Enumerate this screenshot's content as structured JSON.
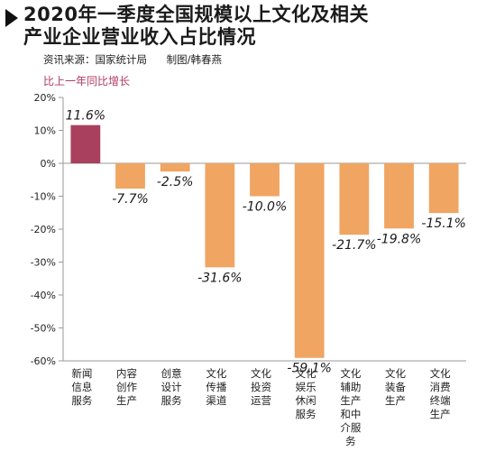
{
  "header": {
    "title_line1": "2020年一季度全国规模以上文化及相关",
    "title_line2": "产业企业营业收入占比情况",
    "source": "资讯来源：国家统计局",
    "credit": "制图/韩春燕"
  },
  "chart_data": {
    "type": "bar",
    "title": "2020年一季度全国规模以上文化及相关产业企业营业收入占比情况",
    "subtitle": "比上一年同比增长",
    "ylabel": "比上一年同比增长",
    "ylim": [
      -60,
      20
    ],
    "yticks": [
      "20%",
      "10%",
      "0%",
      "-10%",
      "-20%",
      "-30%",
      "-40%",
      "-50%",
      "-60%"
    ],
    "ytick_values": [
      20,
      10,
      0,
      -10,
      -20,
      -30,
      -40,
      -50,
      -60
    ],
    "categories": [
      [
        "新闻",
        "信息",
        "服务"
      ],
      [
        "内容",
        "创作",
        "生产"
      ],
      [
        "创意",
        "设计",
        "服务"
      ],
      [
        "文化",
        "传播",
        "渠道"
      ],
      [
        "文化",
        "投资",
        "运营"
      ],
      [
        "文化",
        "娱乐",
        "休闲",
        "服务"
      ],
      [
        "文化",
        "辅助",
        "生产",
        "和中",
        "介服",
        "务"
      ],
      [
        "文化",
        "装备",
        "生产"
      ],
      [
        "文化",
        "消费",
        "终端",
        "生产"
      ]
    ],
    "values": [
      11.6,
      -7.7,
      -2.5,
      -31.6,
      -10.0,
      -59.1,
      -21.7,
      -19.8,
      -15.1
    ],
    "value_labels": [
      "11.6%",
      "-7.7%",
      "-2.5%",
      "-31.6%",
      "-10.0%",
      "-59.1%",
      "-21.7%",
      "-19.8%",
      "-15.1%"
    ],
    "colors": {
      "positive": "#a9405e",
      "negative": "#f0a562",
      "axis": "#9a9a9a"
    },
    "grid": false
  }
}
